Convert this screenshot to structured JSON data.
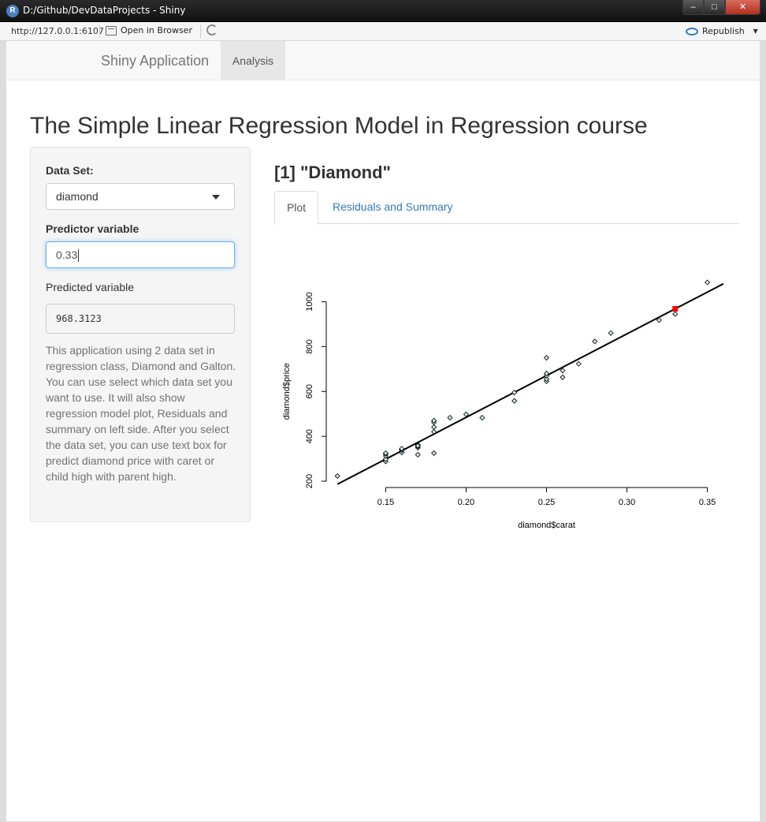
{
  "window": {
    "title": "D:/Github/DevDataProjects - Shiny",
    "app_icon": "R",
    "close_glyph": "✕"
  },
  "addressbar": {
    "url": "http://127.0.0.1:6107",
    "open_browser_label": "Open in Browser",
    "republish_label": "Republish"
  },
  "navbar": {
    "brand": "Shiny Application",
    "tab_label": "Analysis"
  },
  "page": {
    "title": "The Simple Linear Regression Model in Regression course"
  },
  "sidebar": {
    "dataset_label": "Data Set:",
    "dataset_value": "diamond",
    "predictor_label": "Predictor variable",
    "predictor_value": "0.33",
    "predicted_label": "Predicted variable",
    "predicted_value": "968.3123",
    "help_text": "This application using 2 data set in regression class, Diamond and Galton. You can use select which data set you want to use. It will also show regression model plot, Residuals and summary on left side. After you select the data set, you can use text box for predict diamond price with caret or child high with parent high."
  },
  "main": {
    "header": "[1] \"Diamond\"",
    "tabs": [
      {
        "label": "Plot",
        "active": true
      },
      {
        "label": "Residuals and Summary",
        "active": false
      }
    ]
  },
  "chart_data": {
    "type": "scatter",
    "xlabel": "diamond$carat",
    "ylabel": "diamond$price",
    "xlim": [
      0.115,
      0.36
    ],
    "ylim": [
      200,
      1100
    ],
    "xticks": [
      "0.15",
      "0.20",
      "0.25",
      "0.30",
      "0.35"
    ],
    "yticks": [
      "200",
      "400",
      "600",
      "800",
      "1000"
    ],
    "points": {
      "x": [
        0.12,
        0.15,
        0.15,
        0.15,
        0.15,
        0.15,
        0.16,
        0.16,
        0.16,
        0.16,
        0.17,
        0.17,
        0.17,
        0.17,
        0.17,
        0.18,
        0.18,
        0.18,
        0.18,
        0.18,
        0.19,
        0.2,
        0.21,
        0.23,
        0.23,
        0.25,
        0.25,
        0.25,
        0.25,
        0.25,
        0.26,
        0.26,
        0.27,
        0.28,
        0.29,
        0.32,
        0.33,
        0.35
      ],
      "y": [
        223,
        288,
        298,
        313,
        322,
        325,
        328,
        338,
        343,
        345,
        318,
        349,
        355,
        362,
        358,
        325,
        420,
        441,
        462,
        470,
        483,
        498,
        483,
        558,
        595,
        645,
        655,
        670,
        680,
        750,
        663,
        693,
        723,
        823,
        860,
        918,
        945,
        1086
      ]
    },
    "regression_line": {
      "intercept": -259.6,
      "slope": 3721.0
    },
    "highlight_point": {
      "x": 0.33,
      "y": 968.3123,
      "color": "#ff0000"
    }
  }
}
